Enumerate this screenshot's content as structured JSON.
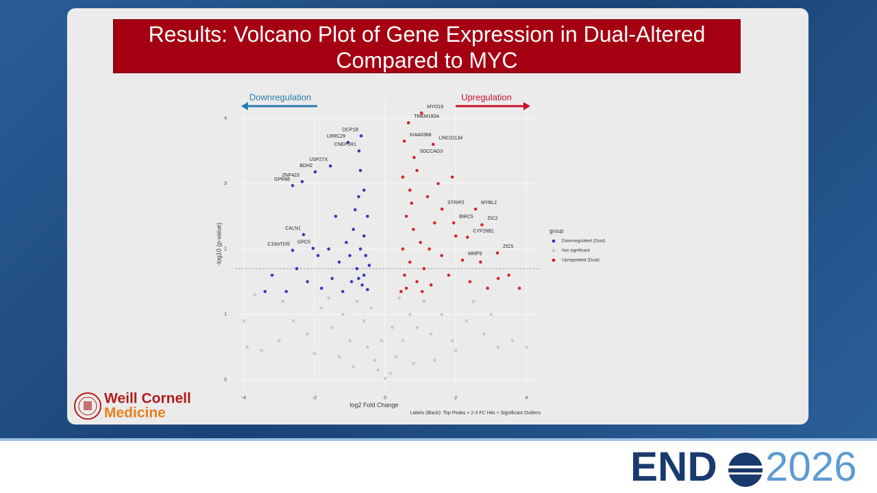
{
  "slide": {
    "title": "Results: Volcano Plot of Gene Expression in Dual-Altered Compared to MYC",
    "logo_line1": "Weill Cornell",
    "logo_line2": "Medicine",
    "brand_left": "END",
    "brand_right": "2026"
  },
  "chart_data": {
    "type": "scatter",
    "xlabel": "log2 Fold Change",
    "ylabel": "-log10 (p-value)",
    "xlim": [
      -4.25,
      4.4
    ],
    "ylim": [
      -0.15,
      4.3
    ],
    "xticks": [
      -4,
      -2,
      0,
      2,
      4
    ],
    "yticks": [
      0,
      1,
      2,
      3,
      4
    ],
    "grid": true,
    "threshold": 1.7,
    "legend_title": "group",
    "legend_position": "right",
    "annotations": {
      "left": "Downregulation",
      "right": "Upregulation",
      "caption": "Labels (Black): Top Peaks + 2-3 FC Hits + Significant Outliers"
    },
    "series": [
      {
        "name": "Downregulated (Dual)",
        "color": "#2626b8",
        "x": [
          -0.68,
          -1.05,
          -0.74,
          -1.55,
          -2.35,
          -1.98,
          -2.62,
          -2.31,
          -2.04,
          -2.62,
          -0.6,
          -0.75,
          -0.5,
          -0.9,
          -1.1,
          -0.7,
          -0.55,
          -1.3,
          -0.8,
          -0.6,
          -1.5,
          -0.95,
          -0.65,
          -1.8,
          -0.5,
          -1.2,
          -2.2,
          -2.8,
          -3.4,
          -3.2,
          -0.7,
          -1.4,
          -1.6,
          -0.85,
          -0.45,
          -1.0,
          -0.6,
          -2.5,
          -1.9,
          -0.75
        ],
        "y": [
          3.73,
          3.63,
          3.5,
          3.27,
          3.03,
          3.18,
          2.97,
          2.22,
          2.01,
          1.98,
          2.9,
          2.8,
          2.5,
          2.3,
          2.1,
          2.0,
          1.9,
          1.8,
          1.7,
          1.6,
          1.55,
          1.5,
          1.45,
          1.4,
          1.38,
          1.35,
          1.5,
          1.35,
          1.35,
          1.6,
          3.2,
          2.5,
          2.0,
          2.6,
          1.75,
          1.9,
          2.2,
          1.7,
          1.9,
          1.55
        ],
        "labels": [
          "DCP1B",
          "LRRC29",
          "CNEP1R1",
          "USP27X",
          "ZNF423",
          "BDH2",
          "GPR88",
          "CALN1",
          "GPC5",
          "C10orf105",
          null,
          null,
          null,
          null,
          null,
          null,
          null,
          null,
          null,
          null,
          null,
          null,
          null,
          null,
          null,
          null,
          null,
          null,
          null,
          null,
          null,
          null,
          null,
          null,
          null,
          null,
          null,
          null,
          null,
          null
        ]
      },
      {
        "name": "Not significant",
        "color": "#c4c4c4",
        "x": [
          -3.9,
          -3.5,
          -3.0,
          -2.6,
          -2.2,
          -1.8,
          -1.5,
          -1.2,
          -1.0,
          -0.8,
          -0.6,
          -0.5,
          -0.3,
          -0.2,
          0,
          0.15,
          0.3,
          0.5,
          0.7,
          0.9,
          1.1,
          1.3,
          1.6,
          1.9,
          2.3,
          2.8,
          3.2,
          3.6,
          4.0,
          -3.7,
          -0.4,
          0.4,
          -2.0,
          2.0,
          -1.3,
          1.4,
          -0.9,
          0.8,
          -0.1,
          0.2,
          2.5,
          -2.9,
          3.0,
          -4.0,
          -1.6
        ],
        "y": [
          0.5,
          0.45,
          0.6,
          0.9,
          0.7,
          1.1,
          0.8,
          1.0,
          0.6,
          1.2,
          0.9,
          0.5,
          0.3,
          0.15,
          0.02,
          0.1,
          0.35,
          0.6,
          1.0,
          0.8,
          1.2,
          0.7,
          1.0,
          0.6,
          0.9,
          0.7,
          0.5,
          0.6,
          0.5,
          1.3,
          1.1,
          1.25,
          0.4,
          0.45,
          0.35,
          0.3,
          0.2,
          0.25,
          0.6,
          0.8,
          1.2,
          1.2,
          1.0,
          0.9,
          1.25
        ],
        "labels": [
          null,
          null,
          null,
          null,
          null,
          null,
          null,
          null,
          null,
          null,
          null,
          null,
          null,
          null,
          null,
          null,
          null,
          null,
          null,
          null,
          null,
          null,
          null,
          null,
          null,
          null,
          null,
          null,
          null,
          null,
          null,
          null,
          null,
          null,
          null,
          null,
          null,
          null,
          null,
          null,
          null,
          null,
          null,
          null,
          null
        ]
      },
      {
        "name": "Upregulated (Dual)",
        "color": "#cc1418",
        "x": [
          1.03,
          0.66,
          0.54,
          1.36,
          0.82,
          1.61,
          2.56,
          1.94,
          2.74,
          2.33,
          3.18,
          2.19,
          0.5,
          0.7,
          0.9,
          1.2,
          0.6,
          0.8,
          1.0,
          1.4,
          0.5,
          0.7,
          1.1,
          0.55,
          0.9,
          1.3,
          0.6,
          1.6,
          1.8,
          2.0,
          1.5,
          1.9,
          0.45,
          1.05,
          2.4,
          2.9,
          3.2,
          3.8,
          3.5,
          2.7,
          0.75,
          1.25
        ],
        "y": [
          4.08,
          3.93,
          3.65,
          3.6,
          3.4,
          2.61,
          2.61,
          2.4,
          2.37,
          2.18,
          1.94,
          1.83,
          3.1,
          2.9,
          3.2,
          2.8,
          2.5,
          2.3,
          2.1,
          2.4,
          2.0,
          1.8,
          1.7,
          1.6,
          1.5,
          1.45,
          1.4,
          1.9,
          1.6,
          2.2,
          3.0,
          3.1,
          1.35,
          1.35,
          1.5,
          1.4,
          1.55,
          1.4,
          1.6,
          1.8,
          2.7,
          2.0
        ],
        "labels": [
          "MYO19",
          "TMEM183A",
          "KIAA0368",
          "LINC01134",
          "SDCCAG3",
          "STRIP2",
          "MYBL2",
          "BIRC5",
          "ZIC2",
          "CYP26B1",
          "ZIC5",
          "MMP9",
          null,
          null,
          null,
          null,
          null,
          null,
          null,
          null,
          null,
          null,
          null,
          null,
          null,
          null,
          null,
          null,
          null,
          null,
          null,
          null,
          null,
          null,
          null,
          null,
          null,
          null,
          null,
          null,
          null,
          null
        ]
      }
    ]
  }
}
